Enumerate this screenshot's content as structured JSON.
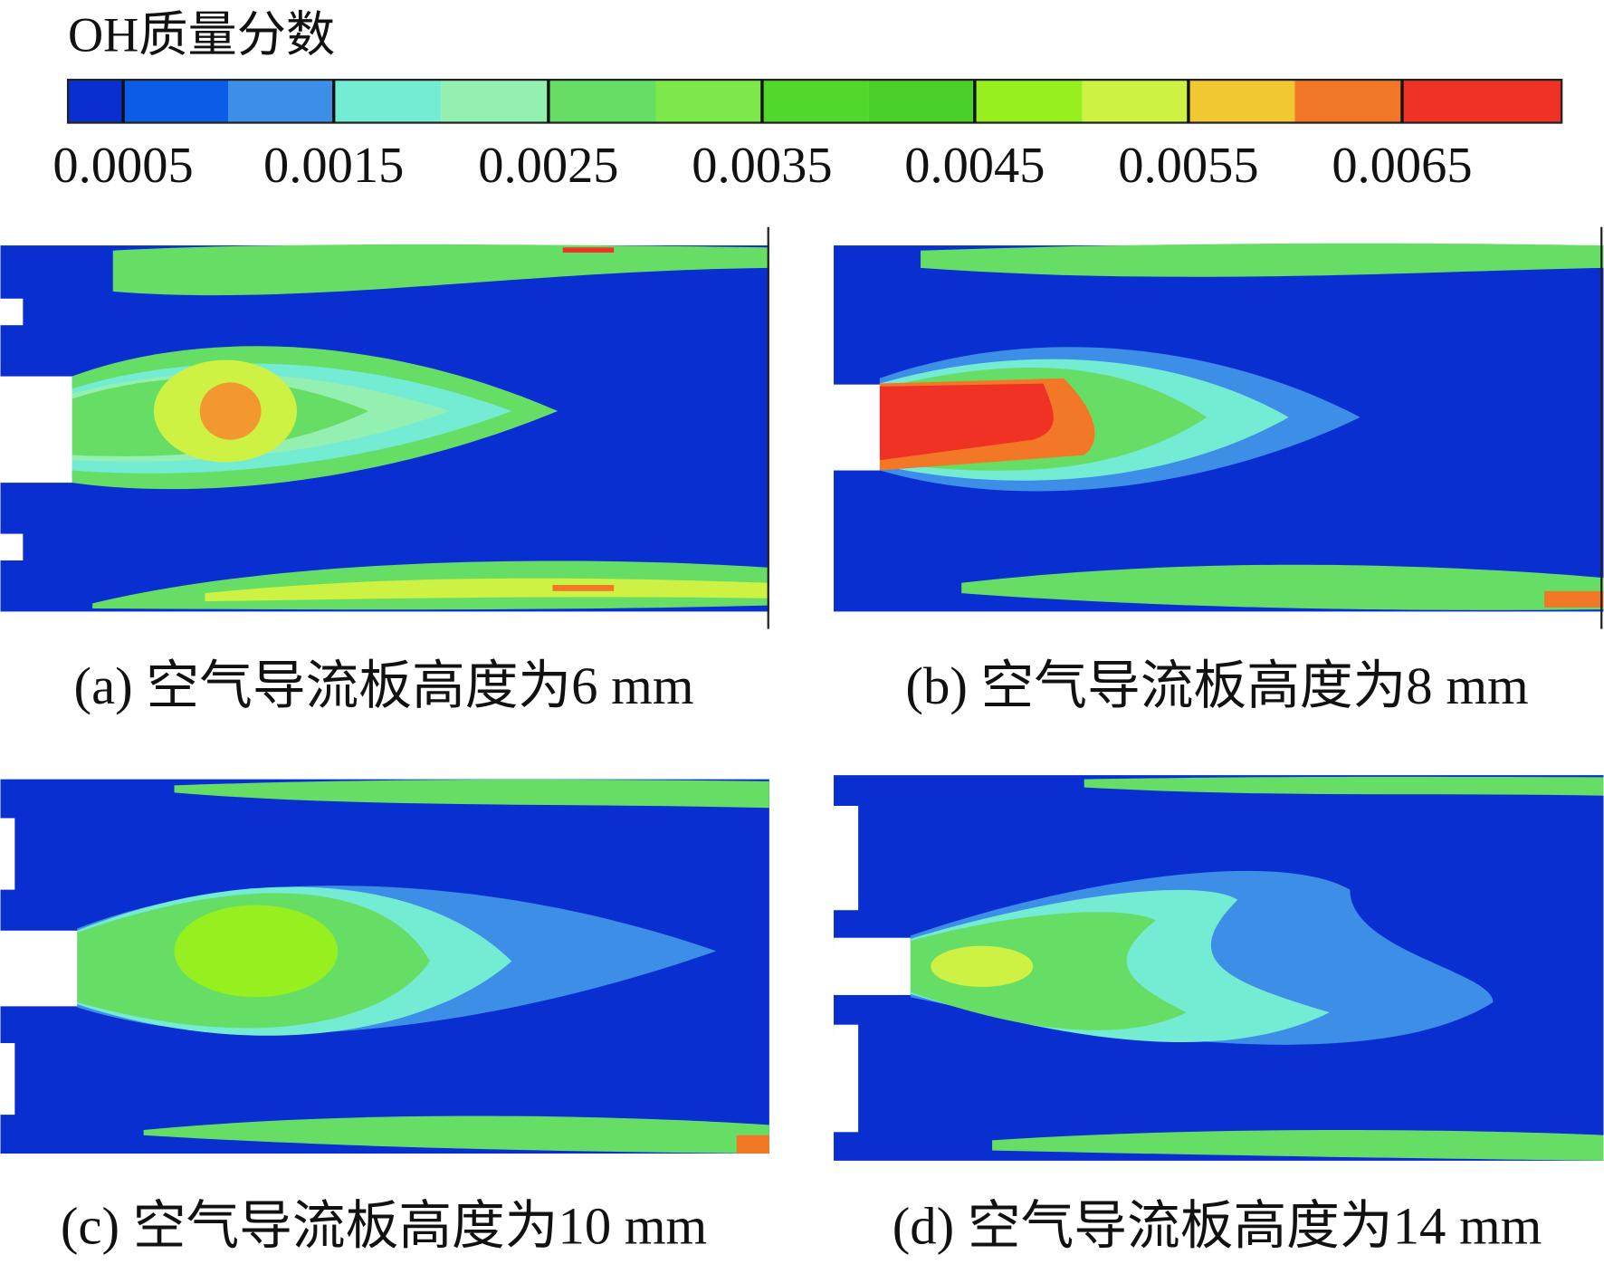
{
  "colorbar": {
    "title": "OH质量分数",
    "ticks": [
      "0.0005",
      "0.0015",
      "0.0025",
      "0.0035",
      "0.0045",
      "0.0055",
      "0.0065"
    ]
  },
  "panels": [
    {
      "caption": "(a) 空气导流板高度为6 mm"
    },
    {
      "caption": "(b) 空气导流板高度为8 mm"
    },
    {
      "caption": "(c) 空气导流板高度为10 mm"
    },
    {
      "caption": "(d) 空气导流板高度为14 mm"
    }
  ]
}
